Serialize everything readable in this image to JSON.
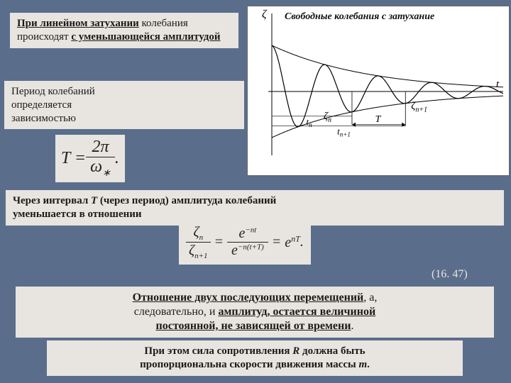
{
  "block1": {
    "prefix": "При линейном затухании",
    "rest": " колебания происходят ",
    "tail": "с уменьшающейся амплитудой"
  },
  "block2": {
    "line1": "Период колебаний",
    "line2": "определяется",
    "line3": "зависимостью"
  },
  "formula1": {
    "lhs": "T",
    "eq": " = ",
    "num": "2π",
    "den": "ω",
    "sub": "∗",
    "dot": "."
  },
  "chart": {
    "title": "Свободные колебания с затухание",
    "ylabel": "ζ",
    "xlabel": "t",
    "zeta_n": "ζ",
    "zeta_n_sub": "n",
    "zeta_n1": "ζ",
    "zeta_n1_sub": "n+1",
    "tn": "t",
    "tn_sub": "n",
    "T": "T",
    "tn1": "t",
    "tn1_sub": "n+1",
    "envelope_color": "#000",
    "wave_color": "#000",
    "axis_color": "#000",
    "damping": 0.35,
    "omega": 8.5,
    "amplitude": 65
  },
  "block3": {
    "line1a": "Через интервал ",
    "T": "T",
    "line1b": " (через период",
    "line1c": ") амплитуда колебаний",
    "line2": "уменьшается в отношении"
  },
  "formula2": {
    "lhs_num": "ζ",
    "lhs_num_sub": "n",
    "lhs_den": "ζ",
    "lhs_den_sub": "n+1",
    "eq1": " = ",
    "mid_num": "e",
    "mid_num_sup": "−nt",
    "mid_den": "e",
    "mid_den_sup": "−n(t+T)",
    "eq2": " = ",
    "rhs": "e",
    "rhs_sup": "nT",
    "dot": "."
  },
  "eqnum": "(16. 47)",
  "block4": {
    "l1a": "Отношение двух последующих перемещений",
    "l1b": ", а,",
    "l2a": "следовательно, и ",
    "l2b": "амплитуд, остается величиной",
    "l3": "постоянной, не зависящей от времени",
    "l3dot": "."
  },
  "block5": {
    "l1a": "При этом сила сопротивления ",
    "R": "R",
    "l1b": " должна быть",
    "l2a": "пропорциональна скорости движения массы ",
    "m": "m",
    "l2b": "."
  }
}
